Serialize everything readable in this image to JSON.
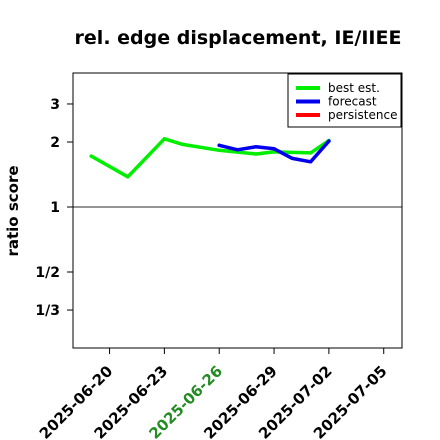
{
  "chart_data": {
    "type": "line",
    "title": "rel. edge displacement, IE/IIEE",
    "xlabel": "",
    "ylabel": "ratio score",
    "y_scale": "log2",
    "ylim": [
      0.25,
      4
    ],
    "xlim": [
      "2025-06-18",
      "2025-07-06"
    ],
    "x_ticks": [
      "2025-06-20",
      "2025-06-23",
      "2025-06-26",
      "2025-06-29",
      "2025-07-02",
      "2025-07-05"
    ],
    "highlighted_x_tick": "2025-06-26",
    "y_ticks": [
      {
        "value": 0.3333,
        "label": "1/3"
      },
      {
        "value": 0.5,
        "label": "1/2"
      },
      {
        "value": 1,
        "label": "1"
      },
      {
        "value": 2,
        "label": "2"
      },
      {
        "value": 3,
        "label": "3"
      }
    ],
    "reference_line": 1,
    "legend_position": "top-right",
    "series": [
      {
        "name": "best est.",
        "color": "#00ee00",
        "points": [
          {
            "x": "2025-06-19",
            "y": 1.72
          },
          {
            "x": "2025-06-21",
            "y": 1.38
          },
          {
            "x": "2025-06-23",
            "y": 2.07
          },
          {
            "x": "2025-06-24",
            "y": 1.95
          },
          {
            "x": "2025-06-26",
            "y": 1.83
          },
          {
            "x": "2025-06-28",
            "y": 1.76
          },
          {
            "x": "2025-06-29",
            "y": 1.8
          },
          {
            "x": "2025-07-01",
            "y": 1.78
          },
          {
            "x": "2025-07-02",
            "y": 2.03
          }
        ]
      },
      {
        "name": "forecast",
        "color": "#0000ee",
        "points": [
          {
            "x": "2025-06-26",
            "y": 1.93
          },
          {
            "x": "2025-06-27",
            "y": 1.84
          },
          {
            "x": "2025-06-28",
            "y": 1.9
          },
          {
            "x": "2025-06-29",
            "y": 1.86
          },
          {
            "x": "2025-06-30",
            "y": 1.68
          },
          {
            "x": "2025-07-01",
            "y": 1.62
          },
          {
            "x": "2025-07-02",
            "y": 2.02
          }
        ]
      },
      {
        "name": "persistence",
        "color": "#ff0000",
        "points": []
      }
    ]
  }
}
